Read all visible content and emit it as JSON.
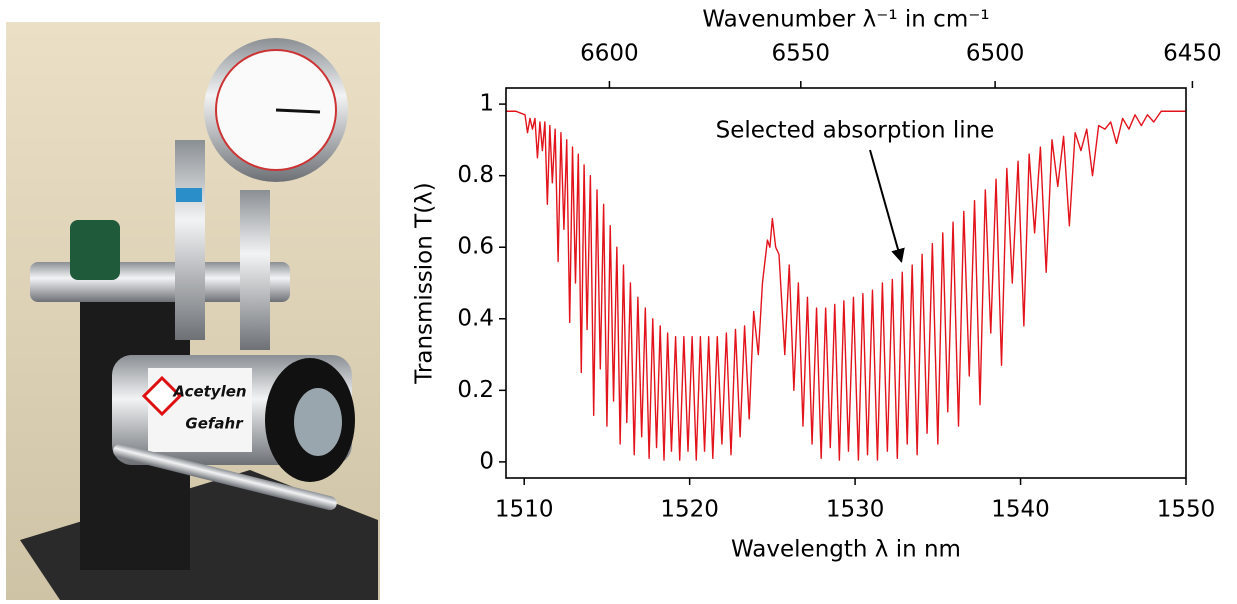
{
  "photo": {
    "labels": [
      "Acetylen",
      "Gefahr"
    ]
  },
  "chart_data": {
    "type": "line",
    "xlabel": "Wavelength λ in nm",
    "ylabel": "Transmission T(λ)",
    "x2label": "Wavenumber λ⁻¹ in cm⁻¹",
    "annotation": {
      "text": "Selected absorption line",
      "x": 1532.8,
      "y": 0.56
    },
    "xlim": [
      1508.9,
      1550
    ],
    "xticks": [
      1510,
      1520,
      1530,
      1540,
      1550
    ],
    "ylim": [
      -0.045,
      1.045
    ],
    "yticks": [
      0.0,
      0.2,
      0.4,
      0.6,
      0.8,
      1.0
    ],
    "x2ticks": [
      6600,
      6550,
      6500,
      6450
    ],
    "grid": false,
    "series": [
      {
        "color": "#e3131b",
        "x": [
          1508.9,
          1509.5,
          1510.05,
          1510.2,
          1510.35,
          1510.5,
          1510.65,
          1510.8,
          1510.95,
          1511.1,
          1511.25,
          1511.4,
          1511.55,
          1511.7,
          1511.87,
          1512.05,
          1512.22,
          1512.4,
          1512.57,
          1512.75,
          1512.92,
          1513.1,
          1513.27,
          1513.45,
          1513.62,
          1513.8,
          1514.0,
          1514.2,
          1514.4,
          1514.6,
          1514.8,
          1515.0,
          1515.2,
          1515.4,
          1515.6,
          1515.8,
          1516.0,
          1516.2,
          1516.42,
          1516.65,
          1516.87,
          1517.1,
          1517.32,
          1517.55,
          1517.77,
          1518.0,
          1518.22,
          1518.45,
          1518.67,
          1518.9,
          1519.15,
          1519.4,
          1519.65,
          1519.9,
          1520.15,
          1520.4,
          1520.65,
          1520.9,
          1521.15,
          1521.4,
          1521.67,
          1521.95,
          1522.22,
          1522.5,
          1522.77,
          1523.05,
          1523.32,
          1523.6,
          1523.87,
          1524.15,
          1524.4,
          1524.7,
          1524.85,
          1525.0,
          1525.2,
          1525.4,
          1525.75,
          1526.02,
          1526.3,
          1526.57,
          1526.85,
          1527.12,
          1527.4,
          1527.67,
          1527.95,
          1528.22,
          1528.5,
          1528.77,
          1529.05,
          1529.32,
          1529.6,
          1529.9,
          1530.2,
          1530.47,
          1530.75,
          1531.05,
          1531.35,
          1531.65,
          1531.95,
          1532.25,
          1532.55,
          1532.85,
          1533.15,
          1533.45,
          1533.75,
          1534.05,
          1534.35,
          1534.67,
          1535.0,
          1535.3,
          1535.6,
          1535.92,
          1536.25,
          1536.57,
          1536.9,
          1537.22,
          1537.55,
          1537.87,
          1538.2,
          1538.52,
          1538.85,
          1539.17,
          1539.5,
          1539.85,
          1540.2,
          1540.52,
          1540.85,
          1541.2,
          1541.55,
          1541.9,
          1542.25,
          1542.6,
          1542.95,
          1543.3,
          1543.65,
          1544.0,
          1544.35,
          1544.72,
          1545.1,
          1545.45,
          1545.8,
          1546.17,
          1546.55,
          1546.92,
          1547.3,
          1547.67,
          1548.05,
          1548.5,
          1549.2,
          1550
        ],
        "values": [
          0.98,
          0.98,
          0.97,
          0.92,
          0.96,
          0.93,
          0.96,
          0.85,
          0.95,
          0.87,
          0.95,
          0.72,
          0.94,
          0.78,
          0.93,
          0.56,
          0.92,
          0.65,
          0.9,
          0.39,
          0.88,
          0.5,
          0.86,
          0.25,
          0.83,
          0.37,
          0.8,
          0.13,
          0.76,
          0.26,
          0.72,
          0.1,
          0.66,
          0.17,
          0.6,
          0.05,
          0.55,
          0.11,
          0.5,
          0.02,
          0.46,
          0.07,
          0.43,
          0.01,
          0.4,
          0.04,
          0.38,
          0.005,
          0.36,
          0.03,
          0.35,
          0.005,
          0.35,
          0.03,
          0.35,
          0.005,
          0.35,
          0.03,
          0.35,
          0.01,
          0.35,
          0.05,
          0.36,
          0.02,
          0.37,
          0.07,
          0.38,
          0.12,
          0.42,
          0.3,
          0.5,
          0.62,
          0.6,
          0.68,
          0.6,
          0.58,
          0.3,
          0.55,
          0.2,
          0.5,
          0.1,
          0.46,
          0.05,
          0.43,
          0.01,
          0.43,
          0.04,
          0.44,
          0.005,
          0.45,
          0.03,
          0.46,
          0.005,
          0.47,
          0.02,
          0.48,
          0.005,
          0.5,
          0.03,
          0.51,
          0.01,
          0.53,
          0.05,
          0.55,
          0.02,
          0.58,
          0.08,
          0.61,
          0.05,
          0.64,
          0.14,
          0.67,
          0.1,
          0.7,
          0.24,
          0.73,
          0.16,
          0.76,
          0.36,
          0.79,
          0.27,
          0.82,
          0.5,
          0.84,
          0.38,
          0.86,
          0.64,
          0.88,
          0.53,
          0.9,
          0.77,
          0.91,
          0.66,
          0.92,
          0.87,
          0.93,
          0.8,
          0.94,
          0.93,
          0.95,
          0.89,
          0.96,
          0.93,
          0.97,
          0.94,
          0.97,
          0.95,
          0.98,
          0.98,
          0.98
        ]
      }
    ]
  }
}
